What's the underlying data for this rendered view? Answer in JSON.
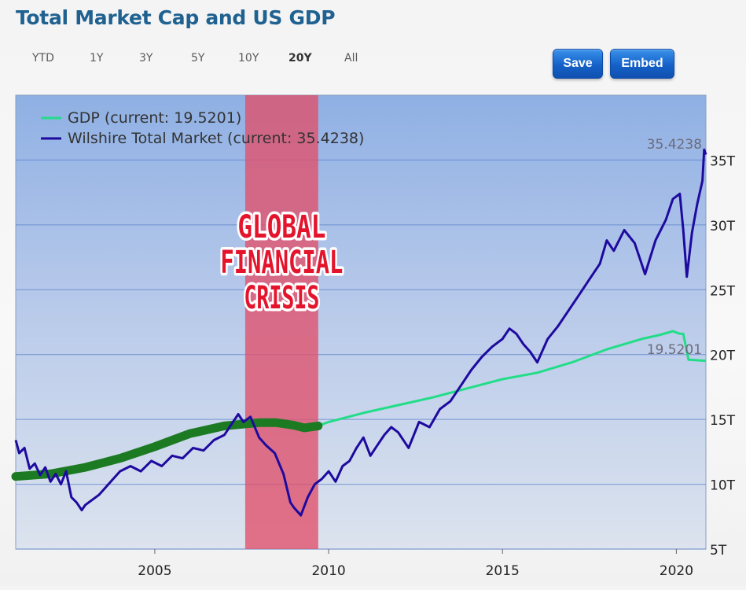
{
  "header": {
    "title": "Total Market Cap and US GDP"
  },
  "ranges": [
    "YTD",
    "1Y",
    "3Y",
    "5Y",
    "10Y",
    "20Y",
    "All"
  ],
  "active_range": "20Y",
  "buttons": {
    "save": "Save",
    "embed": "Embed"
  },
  "colors": {
    "gdp": "#22dd88",
    "gdp_highlight": "#1b7a22",
    "market": "#1e0a9e",
    "crisis": "#e0506a",
    "plot_top": "#8fb0e4",
    "plot_bottom": "#dce3ee"
  },
  "annotation": {
    "lines": [
      "GLOBAL",
      "FINANCIAL",
      "CRISIS"
    ],
    "start": 2007.6,
    "end": 2009.7
  },
  "chart_data": {
    "type": "line",
    "title": "Total Market Cap and US GDP",
    "xlim": [
      2001.0,
      2020.85
    ],
    "ylim": [
      5,
      40
    ],
    "x_ticks": [
      2005,
      2010,
      2015,
      2020
    ],
    "y_ticks": [
      5,
      10,
      15,
      20,
      25,
      30,
      35
    ],
    "y_tick_labels": [
      "5T",
      "10T",
      "15T",
      "20T",
      "25T",
      "30T",
      "35T"
    ],
    "grid": true,
    "legend_position": "top-left",
    "last_value_labels": [
      "35.4238",
      "19.5201"
    ],
    "series": [
      {
        "name": "GDP (current: 19.5201)",
        "current": "19.5201",
        "x": [
          2001.0,
          2002.0,
          2003.0,
          2004.0,
          2005.0,
          2006.0,
          2007.0,
          2007.6,
          2008.0,
          2008.5,
          2009.0,
          2009.3,
          2009.7,
          2010.0,
          2011.0,
          2012.0,
          2013.0,
          2014.0,
          2015.0,
          2016.0,
          2017.0,
          2018.0,
          2019.0,
          2019.5,
          2019.9,
          2020.1,
          2020.2,
          2020.35,
          2020.85
        ],
        "y": [
          10.6,
          10.8,
          11.3,
          12.0,
          12.9,
          13.9,
          14.5,
          14.65,
          14.75,
          14.75,
          14.55,
          14.35,
          14.5,
          14.8,
          15.5,
          16.1,
          16.7,
          17.4,
          18.1,
          18.6,
          19.4,
          20.4,
          21.2,
          21.5,
          21.8,
          21.6,
          21.6,
          19.6,
          19.52
        ]
      },
      {
        "name": "Wilshire Total Market (current: 35.4238)",
        "current": "35.4238",
        "x": [
          2001.0,
          2001.1,
          2001.25,
          2001.4,
          2001.55,
          2001.7,
          2001.85,
          2002.0,
          2002.15,
          2002.3,
          2002.45,
          2002.6,
          2002.75,
          2002.9,
          2003.0,
          2003.2,
          2003.4,
          2003.6,
          2003.8,
          2004.0,
          2004.3,
          2004.6,
          2004.9,
          2005.2,
          2005.5,
          2005.8,
          2006.1,
          2006.4,
          2006.7,
          2007.0,
          2007.2,
          2007.4,
          2007.55,
          2007.75,
          2008.0,
          2008.2,
          2008.45,
          2008.7,
          2008.9,
          2009.0,
          2009.2,
          2009.4,
          2009.6,
          2009.8,
          2010.0,
          2010.2,
          2010.4,
          2010.6,
          2010.8,
          2011.0,
          2011.2,
          2011.4,
          2011.6,
          2011.8,
          2012.0,
          2012.3,
          2012.6,
          2012.9,
          2013.2,
          2013.5,
          2013.8,
          2014.1,
          2014.4,
          2014.7,
          2015.0,
          2015.2,
          2015.4,
          2015.6,
          2015.8,
          2016.0,
          2016.1,
          2016.3,
          2016.6,
          2016.9,
          2017.2,
          2017.5,
          2017.8,
          2018.0,
          2018.2,
          2018.5,
          2018.8,
          2018.95,
          2019.1,
          2019.4,
          2019.7,
          2019.9,
          2020.1,
          2020.2,
          2020.3,
          2020.45,
          2020.6,
          2020.75,
          2020.8,
          2020.85
        ],
        "y": [
          13.4,
          12.4,
          12.8,
          11.2,
          11.6,
          10.7,
          11.3,
          10.2,
          10.8,
          10.0,
          11.0,
          9.0,
          8.6,
          8.0,
          8.4,
          8.8,
          9.2,
          9.8,
          10.4,
          11.0,
          11.4,
          11.0,
          11.8,
          11.4,
          12.2,
          12.0,
          12.8,
          12.6,
          13.4,
          13.8,
          14.6,
          15.4,
          14.8,
          15.2,
          13.6,
          13.0,
          12.4,
          10.8,
          8.6,
          8.2,
          7.6,
          9.0,
          10.0,
          10.4,
          11.0,
          10.2,
          11.4,
          11.8,
          12.8,
          13.6,
          12.2,
          13.0,
          13.8,
          14.4,
          14.0,
          12.8,
          14.8,
          14.4,
          15.8,
          16.4,
          17.6,
          18.8,
          19.8,
          20.6,
          21.2,
          22.0,
          21.6,
          20.8,
          20.2,
          19.4,
          20.0,
          21.2,
          22.2,
          23.4,
          24.6,
          25.8,
          27.0,
          28.8,
          28.0,
          29.6,
          28.6,
          27.4,
          26.2,
          28.8,
          30.4,
          32.0,
          32.4,
          29.6,
          26.0,
          29.4,
          31.6,
          33.4,
          35.8,
          35.42
        ]
      }
    ]
  }
}
